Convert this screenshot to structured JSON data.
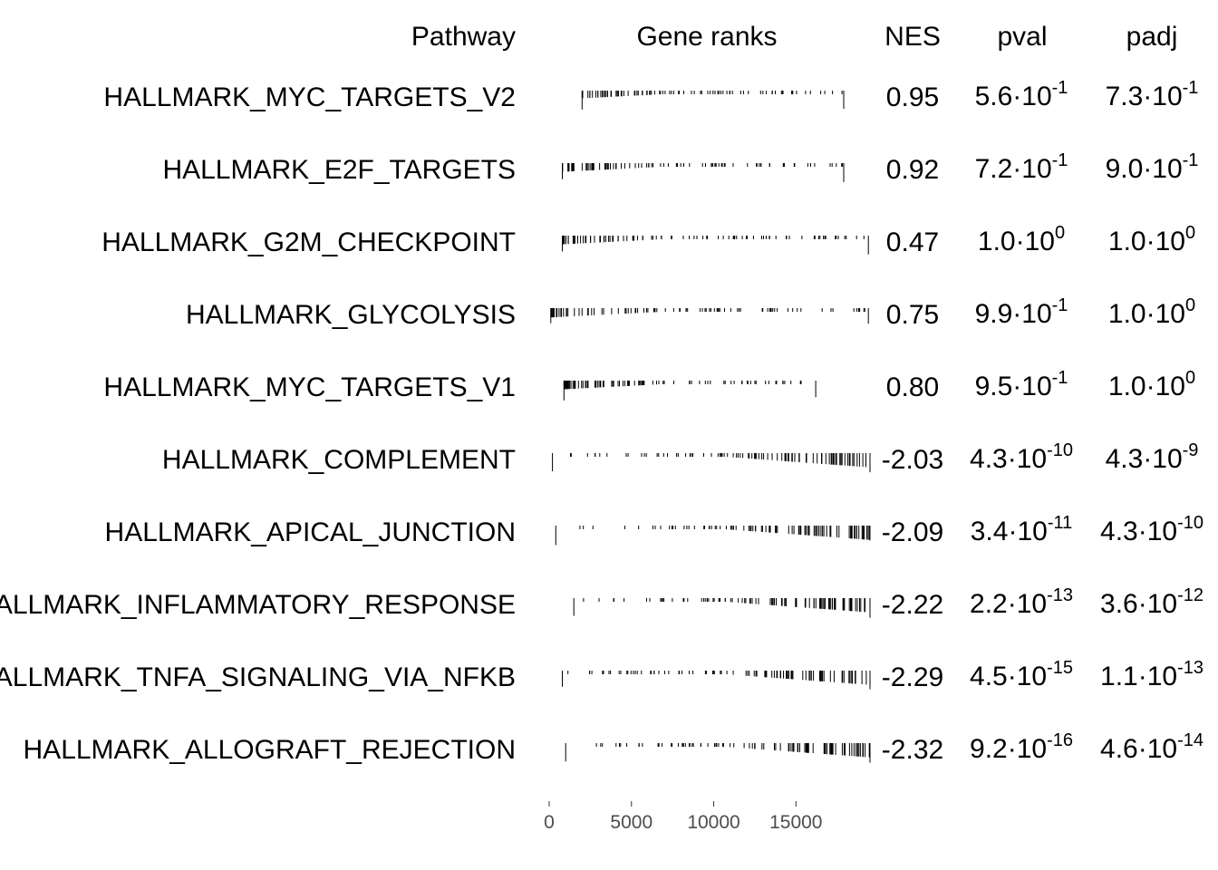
{
  "chart_data": {
    "type": "table",
    "columns": [
      "Pathway",
      "Gene ranks",
      "NES",
      "pval",
      "padj"
    ],
    "rank_axis": {
      "min": 0,
      "max": 19500,
      "ticks": [
        0,
        5000,
        10000,
        15000
      ],
      "tick_labels": [
        "0",
        "5000",
        "10000",
        "15000"
      ]
    },
    "rows": [
      {
        "pathway": "HALLMARK_MYC_TARGETS_V2",
        "nes": "0.95",
        "pval": {
          "m": "5.6",
          "e": "-1"
        },
        "padj": {
          "m": "7.3",
          "e": "-1"
        },
        "rank_min": 2000,
        "rank_max": 17900,
        "direction": "up"
      },
      {
        "pathway": "HALLMARK_E2F_TARGETS",
        "nes": "0.92",
        "pval": {
          "m": "7.2",
          "e": "-1"
        },
        "padj": {
          "m": "9.0",
          "e": "-1"
        },
        "rank_min": 800,
        "rank_max": 17900,
        "direction": "up"
      },
      {
        "pathway": "HALLMARK_G2M_CHECKPOINT",
        "nes": "0.47",
        "pval": {
          "m": "1.0",
          "e": "0"
        },
        "padj": {
          "m": "1.0",
          "e": "0"
        },
        "rank_min": 800,
        "rank_max": 19400,
        "direction": "up"
      },
      {
        "pathway": "HALLMARK_GLYCOLYSIS",
        "nes": "0.75",
        "pval": {
          "m": "9.9",
          "e": "-1"
        },
        "padj": {
          "m": "1.0",
          "e": "0"
        },
        "rank_min": 100,
        "rank_max": 19400,
        "direction": "up"
      },
      {
        "pathway": "HALLMARK_MYC_TARGETS_V1",
        "nes": "0.80",
        "pval": {
          "m": "9.5",
          "e": "-1"
        },
        "padj": {
          "m": "1.0",
          "e": "0"
        },
        "rank_min": 900,
        "rank_max": 16200,
        "direction": "up"
      },
      {
        "pathway": "HALLMARK_COMPLEMENT",
        "nes": "-2.03",
        "pval": {
          "m": "4.3",
          "e": "-10"
        },
        "padj": {
          "m": "4.3",
          "e": "-9"
        },
        "rank_min": 200,
        "rank_max": 19500,
        "direction": "down"
      },
      {
        "pathway": "HALLMARK_APICAL_JUNCTION",
        "nes": "-2.09",
        "pval": {
          "m": "3.4",
          "e": "-11"
        },
        "padj": {
          "m": "4.3",
          "e": "-10"
        },
        "rank_min": 400,
        "rank_max": 19500,
        "direction": "down"
      },
      {
        "pathway": "HALLMARK_INFLAMMATORY_RESPONSE",
        "nes": "-2.22",
        "pval": {
          "m": "2.2",
          "e": "-13"
        },
        "padj": {
          "m": "3.6",
          "e": "-12"
        },
        "rank_min": 1500,
        "rank_max": 19500,
        "direction": "down"
      },
      {
        "pathway": "HALLMARK_TNFA_SIGNALING_VIA_NFKB",
        "nes": "-2.29",
        "pval": {
          "m": "4.5",
          "e": "-15"
        },
        "padj": {
          "m": "1.1",
          "e": "-13"
        },
        "rank_min": 800,
        "rank_max": 19500,
        "direction": "down"
      },
      {
        "pathway": "HALLMARK_ALLOGRAFT_REJECTION",
        "nes": "-2.32",
        "pval": {
          "m": "9.2",
          "e": "-16"
        },
        "padj": {
          "m": "4.6",
          "e": "-14"
        },
        "rank_min": 1000,
        "rank_max": 19500,
        "direction": "down"
      }
    ]
  }
}
